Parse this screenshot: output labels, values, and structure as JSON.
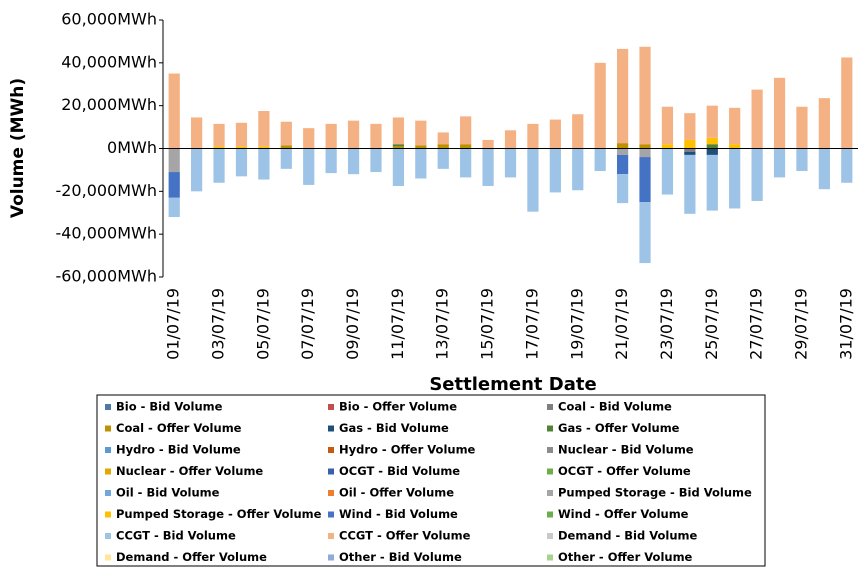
{
  "chart_data": {
    "type": "stacked_bar",
    "y_label": "Volume (MWh)",
    "x_label": "Settlement Date",
    "categories": [
      "01/07/19",
      null,
      "03/07/19",
      null,
      "05/07/19",
      null,
      "07/07/19",
      null,
      "09/07/19",
      null,
      "11/07/19",
      null,
      "13/07/19",
      null,
      "15/07/19",
      null,
      "17/07/19",
      null,
      "19/07/19",
      null,
      "21/07/19",
      null,
      "23/07/19",
      null,
      "25/07/19",
      null,
      "27/07/19",
      null,
      "29/07/19",
      null,
      "31/07/19"
    ],
    "ylim": [
      -60000,
      60000
    ],
    "yticks": [
      {
        "value": -60000,
        "label": "-60,000MWh"
      },
      {
        "value": -40000,
        "label": "-40,000MWh"
      },
      {
        "value": -20000,
        "label": "-20,000MWh"
      },
      {
        "value": 0,
        "label": "0MWh"
      },
      {
        "value": 20000,
        "label": "20,000MWh"
      },
      {
        "value": 40000,
        "label": "40,000MWh"
      },
      {
        "value": 60000,
        "label": "60,000MWh"
      }
    ],
    "series": [
      {
        "name": "Bio - Bid Volume",
        "color": "#4e79a7",
        "values": [
          0,
          0,
          0,
          0,
          0,
          0,
          0,
          0,
          0,
          0,
          0,
          0,
          0,
          0,
          0,
          0,
          0,
          0,
          0,
          0,
          0,
          0,
          0,
          0,
          0,
          0,
          0,
          0,
          0,
          0,
          0
        ]
      },
      {
        "name": "Bio - Offer Volume",
        "color": "#c0504d",
        "values": [
          0,
          0,
          0,
          0,
          0,
          0,
          0,
          0,
          0,
          0,
          0,
          0,
          0,
          0,
          0,
          0,
          0,
          0,
          0,
          0,
          0,
          0,
          0,
          0,
          0,
          0,
          0,
          0,
          0,
          0,
          0
        ]
      },
      {
        "name": "Coal - Bid Volume",
        "color": "#7f7f7f",
        "values": [
          0,
          0,
          0,
          0,
          0,
          0,
          0,
          0,
          0,
          0,
          0,
          0,
          0,
          0,
          0,
          0,
          0,
          0,
          0,
          0,
          0,
          0,
          0,
          -1500,
          0,
          0,
          0,
          0,
          0,
          0,
          0
        ]
      },
      {
        "name": "Coal - Offer Volume",
        "color": "#bf9000",
        "values": [
          0,
          0,
          0,
          0,
          0,
          1500,
          0,
          0,
          0,
          0,
          1000,
          1500,
          2000,
          2000,
          0,
          0,
          0,
          0,
          0,
          0,
          2500,
          2000,
          0,
          0,
          0,
          0,
          0,
          0,
          0,
          0,
          0
        ]
      },
      {
        "name": "Gas - Bid Volume",
        "color": "#1f4e79",
        "values": [
          0,
          0,
          0,
          0,
          0,
          0,
          0,
          0,
          0,
          0,
          0,
          0,
          0,
          0,
          0,
          0,
          0,
          0,
          0,
          0,
          0,
          0,
          0,
          -1500,
          -3000,
          0,
          0,
          0,
          0,
          0,
          0
        ]
      },
      {
        "name": "Gas - Offer Volume",
        "color": "#548235",
        "values": [
          0,
          0,
          0,
          0,
          0,
          0,
          0,
          0,
          0,
          0,
          1000,
          0,
          0,
          0,
          0,
          0,
          0,
          0,
          0,
          0,
          0,
          0,
          0,
          0,
          2000,
          0,
          0,
          0,
          0,
          0,
          0
        ]
      },
      {
        "name": "Hydro - Bid Volume",
        "color": "#5b9bd5",
        "values": [
          0,
          0,
          0,
          0,
          0,
          0,
          0,
          0,
          0,
          0,
          0,
          0,
          0,
          0,
          0,
          0,
          0,
          0,
          0,
          0,
          0,
          0,
          0,
          0,
          0,
          0,
          0,
          0,
          0,
          0,
          0
        ]
      },
      {
        "name": "Hydro - Offer Volume",
        "color": "#c55a11",
        "values": [
          0,
          0,
          0,
          0,
          0,
          0,
          0,
          0,
          0,
          0,
          0,
          0,
          0,
          0,
          0,
          0,
          0,
          0,
          0,
          0,
          0,
          0,
          0,
          0,
          0,
          0,
          0,
          0,
          0,
          0,
          0
        ]
      },
      {
        "name": "Nuclear - Bid Volume",
        "color": "#8c8c8c",
        "values": [
          0,
          0,
          0,
          0,
          0,
          0,
          0,
          0,
          0,
          0,
          0,
          0,
          0,
          0,
          0,
          0,
          0,
          0,
          0,
          0,
          0,
          0,
          0,
          0,
          0,
          0,
          0,
          0,
          0,
          0,
          0
        ]
      },
      {
        "name": "Nuclear - Offer Volume",
        "color": "#dea900",
        "values": [
          0,
          0,
          0,
          0,
          0,
          0,
          0,
          0,
          0,
          0,
          0,
          0,
          0,
          0,
          0,
          0,
          0,
          0,
          0,
          0,
          0,
          0,
          0,
          0,
          0,
          0,
          0,
          0,
          0,
          0,
          0
        ]
      },
      {
        "name": "OCGT - Bid Volume",
        "color": "#3a5fad",
        "values": [
          0,
          0,
          0,
          0,
          0,
          0,
          0,
          0,
          0,
          0,
          0,
          0,
          0,
          0,
          0,
          0,
          0,
          0,
          0,
          0,
          0,
          0,
          0,
          0,
          0,
          0,
          0,
          0,
          0,
          0,
          0
        ]
      },
      {
        "name": "OCGT - Offer Volume",
        "color": "#70ad47",
        "values": [
          0,
          0,
          0,
          0,
          0,
          0,
          0,
          0,
          0,
          0,
          0,
          0,
          0,
          0,
          0,
          0,
          0,
          0,
          0,
          0,
          0,
          0,
          0,
          0,
          0,
          0,
          0,
          0,
          0,
          0,
          0
        ]
      },
      {
        "name": "Oil - Bid Volume",
        "color": "#6fa8dc",
        "values": [
          0,
          0,
          0,
          0,
          0,
          0,
          0,
          0,
          0,
          0,
          0,
          0,
          0,
          0,
          0,
          0,
          0,
          0,
          0,
          0,
          0,
          0,
          0,
          0,
          0,
          0,
          0,
          0,
          0,
          0,
          0
        ]
      },
      {
        "name": "Oil - Offer Volume",
        "color": "#ed7d31",
        "values": [
          0,
          0,
          0,
          0,
          0,
          0,
          0,
          0,
          0,
          0,
          0,
          0,
          0,
          0,
          0,
          0,
          0,
          0,
          0,
          0,
          0,
          0,
          0,
          0,
          0,
          0,
          0,
          0,
          0,
          0,
          0
        ]
      },
      {
        "name": "Pumped Storage - Bid Volume",
        "color": "#a5a5a5",
        "values": [
          -11000,
          0,
          0,
          0,
          0,
          0,
          0,
          0,
          0,
          0,
          0,
          0,
          0,
          0,
          0,
          0,
          0,
          0,
          0,
          0,
          -3000,
          -4000,
          0,
          0,
          0,
          0,
          0,
          0,
          0,
          0,
          0
        ]
      },
      {
        "name": "Pumped Storage - Offer Volume",
        "color": "#ffc000",
        "values": [
          0,
          0,
          1000,
          1000,
          1000,
          0,
          0,
          0,
          0,
          0,
          0,
          0,
          0,
          0,
          0,
          0,
          0,
          0,
          0,
          0,
          0,
          0,
          2000,
          4000,
          3000,
          2000,
          0,
          0,
          0,
          0,
          0
        ]
      },
      {
        "name": "Wind - Bid Volume",
        "color": "#4472c4",
        "values": [
          -12000,
          0,
          0,
          0,
          0,
          0,
          0,
          0,
          0,
          0,
          0,
          0,
          0,
          0,
          0,
          0,
          0,
          0,
          0,
          0,
          -9000,
          -21000,
          0,
          0,
          0,
          0,
          0,
          0,
          0,
          0,
          0
        ]
      },
      {
        "name": "Wind - Offer Volume",
        "color": "#6aaf4a",
        "values": [
          0,
          0,
          0,
          0,
          0,
          0,
          0,
          0,
          0,
          0,
          0,
          0,
          0,
          0,
          0,
          0,
          0,
          0,
          0,
          0,
          0,
          0,
          0,
          0,
          0,
          0,
          0,
          0,
          0,
          0,
          0
        ]
      },
      {
        "name": "CCGT - Bid Volume",
        "color": "#9dc3e6",
        "values": [
          -9000,
          -20000,
          -16000,
          -13000,
          -14500,
          -9500,
          -17000,
          -11500,
          -12000,
          -11000,
          -17500,
          -14000,
          -9500,
          -13500,
          -17500,
          -13500,
          -29500,
          -20500,
          -19500,
          -10500,
          -13500,
          -28500,
          -21500,
          -27500,
          -26000,
          -28000,
          -24500,
          -13500,
          -10500,
          -19000,
          -16000
        ]
      },
      {
        "name": "CCGT - Offer Volume",
        "color": "#f4b183",
        "values": [
          35000,
          14500,
          10500,
          11000,
          16500,
          11000,
          9500,
          11500,
          13000,
          11500,
          12500,
          11500,
          5500,
          13000,
          4000,
          8500,
          11500,
          13500,
          16000,
          40000,
          44000,
          45500,
          17500,
          12500,
          15000,
          17000,
          27500,
          33000,
          19500,
          23500,
          42500
        ]
      },
      {
        "name": "Demand - Bid Volume",
        "color": "#c9c9c9",
        "values": [
          0,
          0,
          0,
          0,
          0,
          0,
          0,
          0,
          0,
          0,
          0,
          0,
          0,
          0,
          0,
          0,
          0,
          0,
          0,
          0,
          0,
          0,
          0,
          0,
          0,
          0,
          0,
          0,
          0,
          0,
          0
        ]
      },
      {
        "name": "Demand - Offer Volume",
        "color": "#ffe699",
        "values": [
          0,
          0,
          0,
          0,
          0,
          0,
          0,
          0,
          0,
          0,
          0,
          0,
          0,
          0,
          0,
          0,
          0,
          0,
          0,
          0,
          0,
          0,
          0,
          0,
          0,
          0,
          0,
          0,
          0,
          0,
          0
        ]
      },
      {
        "name": "Other - Bid Volume",
        "color": "#8faadc",
        "values": [
          0,
          0,
          0,
          0,
          0,
          0,
          0,
          0,
          0,
          0,
          0,
          0,
          0,
          0,
          0,
          0,
          0,
          0,
          0,
          0,
          0,
          0,
          0,
          0,
          0,
          0,
          0,
          0,
          0,
          0,
          0
        ]
      },
      {
        "name": "Other - Offer Volume",
        "color": "#a9d18e",
        "values": [
          0,
          0,
          0,
          0,
          0,
          0,
          0,
          0,
          0,
          0,
          0,
          0,
          0,
          0,
          0,
          0,
          0,
          0,
          0,
          0,
          0,
          0,
          0,
          0,
          0,
          0,
          0,
          0,
          0,
          0,
          0
        ]
      }
    ]
  }
}
